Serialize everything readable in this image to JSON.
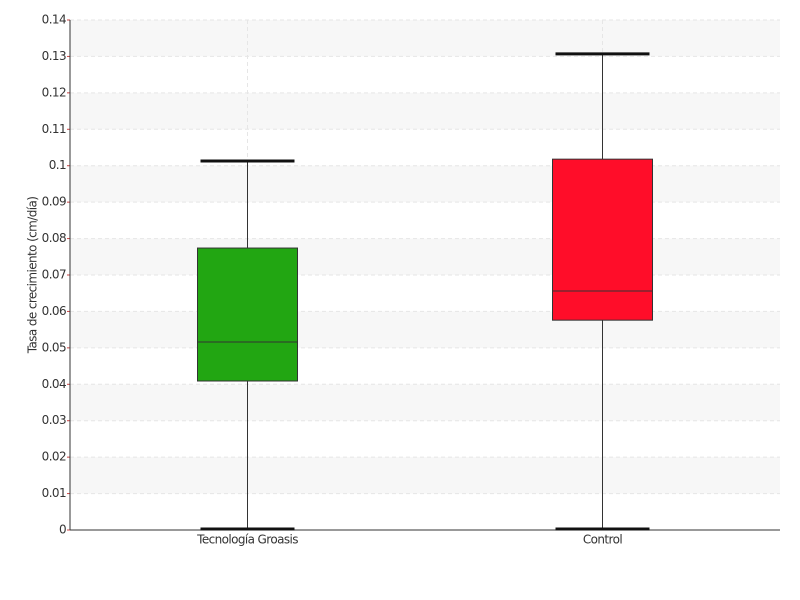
{
  "chart_data": {
    "type": "box",
    "y_label": "Tasa de crecimiento (cm/día)",
    "categories": [
      "Tecnología Groasis",
      "Control"
    ],
    "boxes": [
      {
        "min": 0,
        "q1": 0.0409,
        "median": 0.0516,
        "q3": 0.0774,
        "max": 0.1013,
        "color": "#22a612"
      },
      {
        "min": 0,
        "q1": 0.0576,
        "median": 0.0656,
        "q3": 0.1018,
        "max": 0.1307,
        "color": "#ff0d29"
      }
    ],
    "ylim": [
      0,
      0.14
    ],
    "yticks": [
      0,
      0.01,
      0.02,
      0.03,
      0.04,
      0.05,
      0.06,
      0.07,
      0.08,
      0.09,
      0.1,
      0.11,
      0.12,
      0.13,
      0.14
    ],
    "grid": true
  }
}
